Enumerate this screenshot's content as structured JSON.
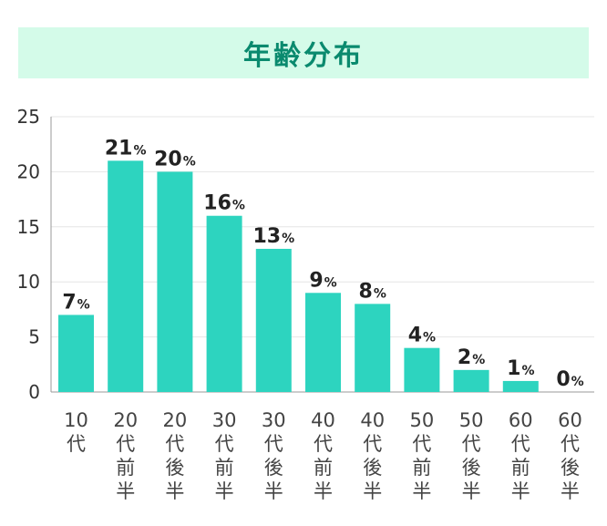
{
  "title": "年齢分布",
  "colors": {
    "bar": "#2dd4bf",
    "title_bg": "#d4fbe9",
    "title_text": "#0a8a6e",
    "grid": "#e6e6e6",
    "axis": "#999999"
  },
  "chart_data": {
    "type": "bar",
    "title": "年齢分布",
    "categories": [
      "10代",
      "20代前半",
      "20代後半",
      "30代前半",
      "30代後半",
      "40代前半",
      "40代後半",
      "50代前半",
      "50代後半",
      "60代前半",
      "60代後半"
    ],
    "values": [
      7,
      21,
      20,
      16,
      13,
      9,
      8,
      4,
      2,
      1,
      0
    ],
    "value_unit": "%",
    "yticks": [
      0,
      5,
      10,
      15,
      20,
      25
    ],
    "ylim": [
      0,
      25
    ],
    "xlabel": "",
    "ylabel": "",
    "grid": true,
    "legend": "none"
  }
}
